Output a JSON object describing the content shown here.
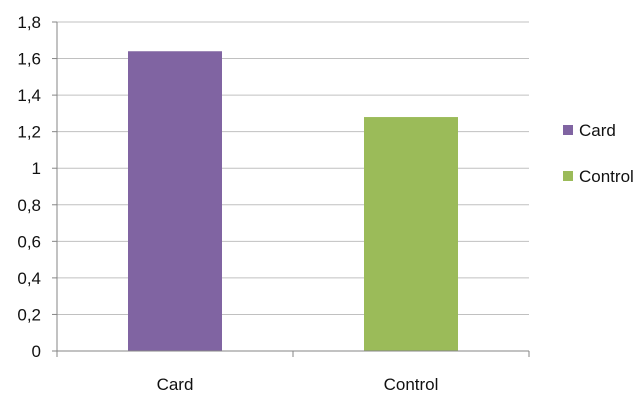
{
  "chart_data": {
    "type": "bar",
    "categories": [
      "Card",
      "Control"
    ],
    "series": [
      {
        "name": "Card",
        "values": [
          1.64,
          null
        ],
        "color": "#8064a2"
      },
      {
        "name": "Control",
        "values": [
          null,
          1.28
        ],
        "color": "#9bbb59"
      }
    ],
    "ylim": [
      0,
      1.8
    ],
    "yticks": [
      "0",
      "0,2",
      "0,4",
      "0,6",
      "0,8",
      "1",
      "1,2",
      "1,4",
      "1,6",
      "1,8"
    ],
    "grid": true,
    "legend": "right",
    "gridline_color": "#c0c0c0",
    "axis_color": "#868686"
  }
}
